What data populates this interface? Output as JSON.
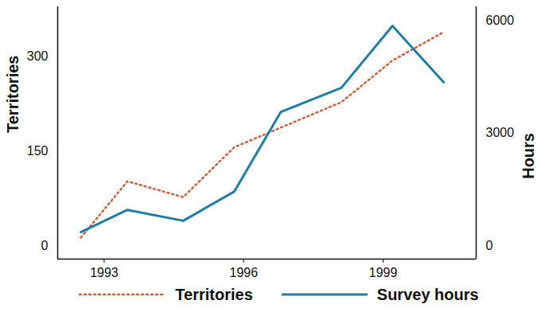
{
  "chart_data": {
    "type": "line",
    "x": [
      1992.5,
      1993.5,
      1994.7,
      1995.8,
      1996.8,
      1998.1,
      1999.2,
      2000.3
    ],
    "xlim": [
      1992,
      2001
    ],
    "xticks": [
      1993,
      1996,
      1999
    ],
    "ylim": [
      -21,
      378
    ],
    "yticks": [
      0,
      150,
      300
    ],
    "y2lim": [
      -360,
      6360
    ],
    "y2ticks": [
      0,
      3000,
      6000
    ],
    "ylabel": "Territories",
    "y2label": "Hours",
    "legend": "bottom",
    "series": [
      {
        "name": "Territories",
        "color": "#c8603f",
        "line_style": "dotted",
        "values": [
          13,
          102,
          77,
          156,
          187,
          227,
          293,
          338
        ]
      },
      {
        "name": "Survey hours",
        "color": "#1f7ea1",
        "line_style": "solid",
        "axis": "y2",
        "values": [
          360,
          950,
          660,
          1440,
          3560,
          4200,
          5850,
          4350
        ]
      }
    ]
  }
}
